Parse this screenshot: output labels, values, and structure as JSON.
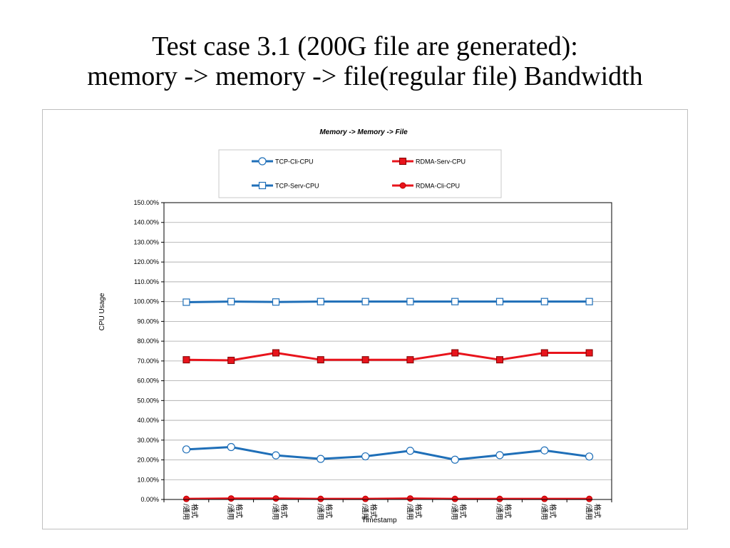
{
  "slide": {
    "title_line1": "Test case 3.1 (200G file are generated):",
    "title_line2": "memory -> memory -> file(regular file) Bandwidth"
  },
  "chart_data": {
    "type": "line",
    "title": "Memory -> Memory -> File",
    "xlabel": "Timestamp",
    "ylabel": "CPU Usage",
    "ylim": [
      0,
      150
    ],
    "y_tick_step": 10,
    "y_tick_labels": [
      "0.00%",
      "10.00%",
      "20.00%",
      "30.00%",
      "40.00%",
      "50.00%",
      "60.00%",
      "70.00%",
      "80.00%",
      "90.00%",
      "100.00%",
      "110.00%",
      "120.00%",
      "130.00%",
      "140.00%",
      "150.00%"
    ],
    "categories": [
      "/通用\n格式",
      "/通用\n格式",
      "/通用\n格式",
      "/通用\n格式",
      "/通用\n格式",
      "/通用\n格式",
      "/通用\n格式",
      "/通用\n格式",
      "/通用\n格式",
      "/通用\n格式"
    ],
    "grid": true,
    "legend_position": "top",
    "series": [
      {
        "name": "TCP-Cli-CPU",
        "color": "#1f6fb8",
        "marker": "circle",
        "values": [
          25.3,
          26.5,
          22.3,
          20.5,
          21.8,
          24.6,
          20.1,
          22.4,
          24.8,
          21.7
        ]
      },
      {
        "name": "RDMA-Serv-CPU",
        "color": "#e8141c",
        "marker": "square-filled",
        "values": [
          70.6,
          70.3,
          74.1,
          70.6,
          70.6,
          70.6,
          74.1,
          70.6,
          74.1,
          74.1
        ]
      },
      {
        "name": "TCP-Serv-CPU",
        "color": "#1f6fb8",
        "marker": "square-open",
        "values": [
          99.7,
          100.0,
          99.8,
          100.0,
          100.0,
          100.0,
          100.0,
          100.0,
          100.0,
          100.0
        ]
      },
      {
        "name": "RDMA-Cli-CPU",
        "color": "#e8141c",
        "marker": "circle-filled",
        "values": [
          0.3,
          0.5,
          0.5,
          0.3,
          0.3,
          0.5,
          0.3,
          0.3,
          0.3,
          0.3
        ]
      }
    ]
  }
}
